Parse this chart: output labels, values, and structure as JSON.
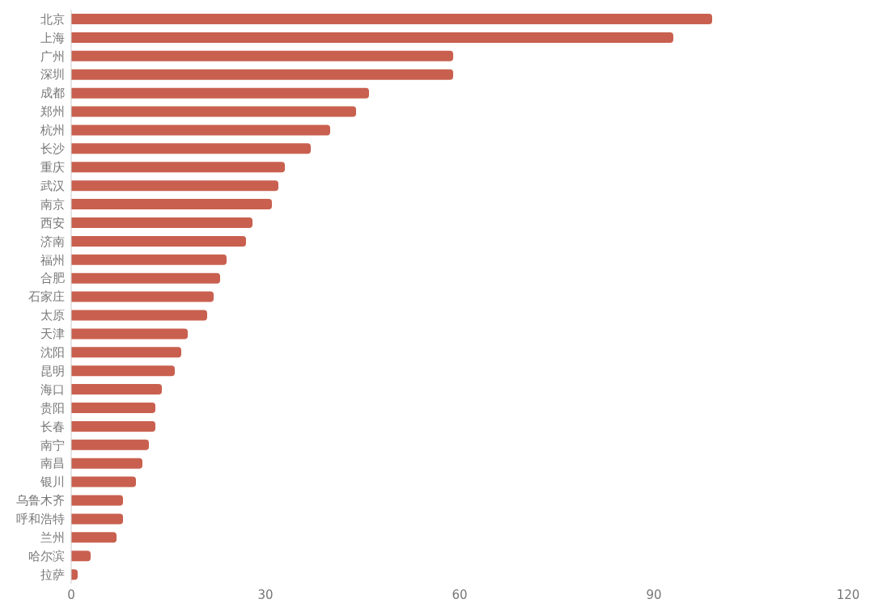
{
  "chart_data": {
    "type": "bar",
    "orientation": "horizontal",
    "categories": [
      "北京",
      "上海",
      "广州",
      "深圳",
      "成都",
      "郑州",
      "杭州",
      "长沙",
      "重庆",
      "武汉",
      "南京",
      "西安",
      "济南",
      "福州",
      "合肥",
      "石家庄",
      "太原",
      "天津",
      "沈阳",
      "昆明",
      "海口",
      "贵阳",
      "长春",
      "南宁",
      "南昌",
      "银川",
      "乌鲁木齐",
      "呼和浩特",
      "兰州",
      "哈尔滨",
      "拉萨"
    ],
    "values": [
      99,
      93,
      59,
      59,
      46,
      44,
      40,
      37,
      33,
      32,
      31,
      28,
      27,
      24,
      23,
      22,
      21,
      18,
      17,
      16,
      14,
      13,
      13,
      12,
      11,
      10,
      8,
      8,
      7,
      3,
      1
    ],
    "color": "#c9604f",
    "xlim": [
      0,
      120
    ],
    "xticks": [
      0,
      30,
      60,
      90,
      120
    ],
    "grid": false,
    "legend": false
  }
}
